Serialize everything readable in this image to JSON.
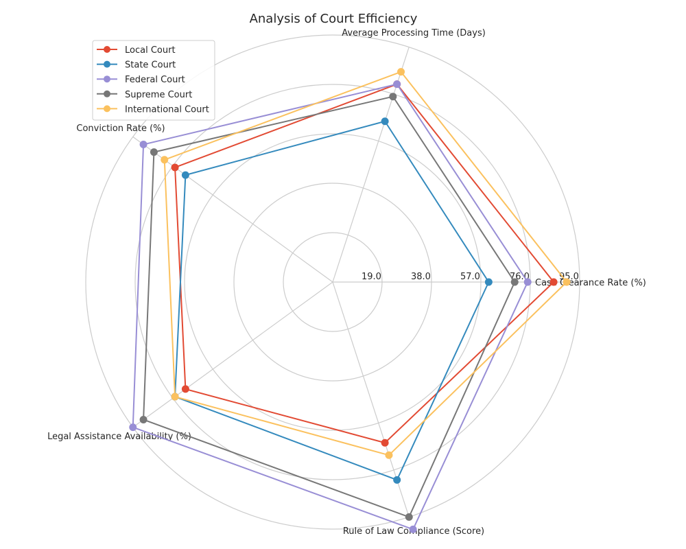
{
  "chart_data": {
    "type": "radar",
    "title": "Analysis of Court Efficiency",
    "axes": [
      "Case Clearance Rate (%)",
      "Average Processing Time (Days)",
      "Conviction Rate (%)",
      "Legal Assistance Availability (%)",
      "Rule of Law Compliance (Score)"
    ],
    "radial_ticks": [
      "19.0",
      "38.0",
      "57.0",
      "76.0",
      "95.0"
    ],
    "radial_tick_values": [
      19,
      38,
      57,
      76,
      95
    ],
    "rmax": 95,
    "grid": true,
    "legend_position": "top-left",
    "series": [
      {
        "name": "Local Court",
        "color": "#E24A33",
        "values": [
          85,
          80,
          75,
          70,
          65
        ]
      },
      {
        "name": "State Court",
        "color": "#348ABD",
        "values": [
          60,
          65,
          70,
          75,
          80
        ]
      },
      {
        "name": "Federal Court",
        "color": "#988ED5",
        "values": [
          75,
          80,
          90,
          95,
          100
        ]
      },
      {
        "name": "Supreme Court",
        "color": "#777777",
        "values": [
          70,
          75,
          85,
          90,
          95
        ]
      },
      {
        "name": "International Court",
        "color": "#FBC15E",
        "values": [
          90,
          85,
          80,
          75,
          70
        ]
      }
    ]
  }
}
